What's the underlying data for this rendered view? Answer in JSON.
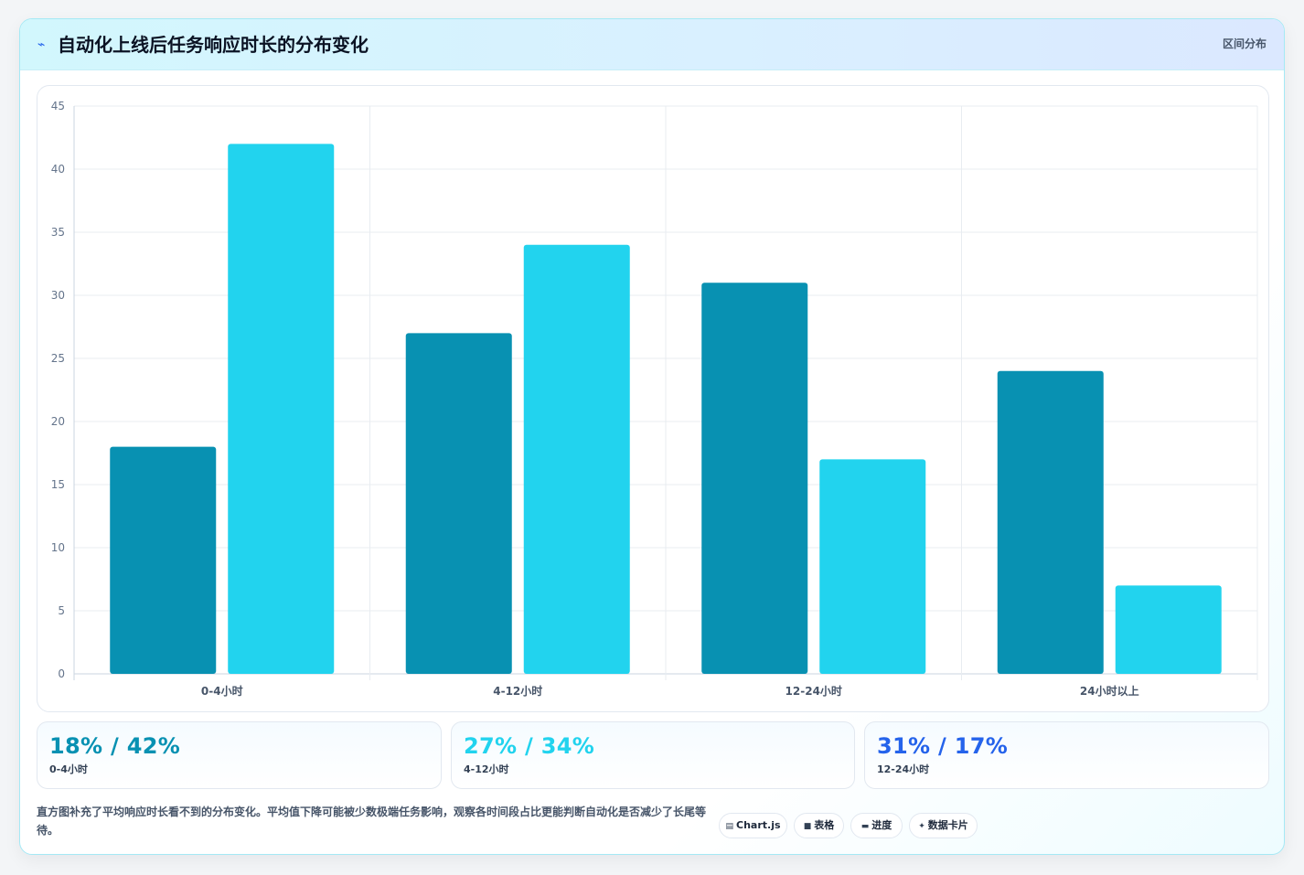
{
  "header": {
    "icon": "lightning-icon",
    "title": "自动化上线后任务响应时长的分布变化",
    "badge": "区间分布"
  },
  "colors": {
    "series_before": "#0891b2",
    "series_after": "#22d3ee",
    "stat_1": "#0891b2",
    "stat_2": "#22d3ee",
    "stat_3": "#2563eb"
  },
  "chart_data": {
    "type": "bar",
    "categories": [
      "0-4小时",
      "4-12小时",
      "12-24小时",
      "24小时以上"
    ],
    "series": [
      {
        "values": [
          18,
          27,
          31,
          24
        ]
      },
      {
        "values": [
          42,
          34,
          17,
          7
        ]
      }
    ],
    "ylim": [
      0,
      45
    ],
    "yticks": [
      0,
      5,
      10,
      15,
      20,
      25,
      30,
      35,
      40,
      45
    ],
    "grid": true,
    "legend": "none"
  },
  "stats": [
    {
      "value": "18% / 42%",
      "label": "0-4小时"
    },
    {
      "value": "27% / 34%",
      "label": "4-12小时"
    },
    {
      "value": "31% / 17%",
      "label": "12-24小时"
    }
  ],
  "footer": {
    "note": "直方图补充了平均响应时长看不到的分布变化。平均值下降可能被少数极端任务影响，观察各时间段占比更能判断自动化是否减少了长尾等待。",
    "tags": [
      {
        "icon": "chart-icon",
        "glyph": "▤",
        "label": "Chart.js"
      },
      {
        "icon": "table-icon",
        "glyph": "■",
        "label": "表格"
      },
      {
        "icon": "progress-icon",
        "glyph": "▬",
        "label": "进度"
      },
      {
        "icon": "card-icon",
        "glyph": "✦",
        "label": "数据卡片"
      }
    ]
  }
}
